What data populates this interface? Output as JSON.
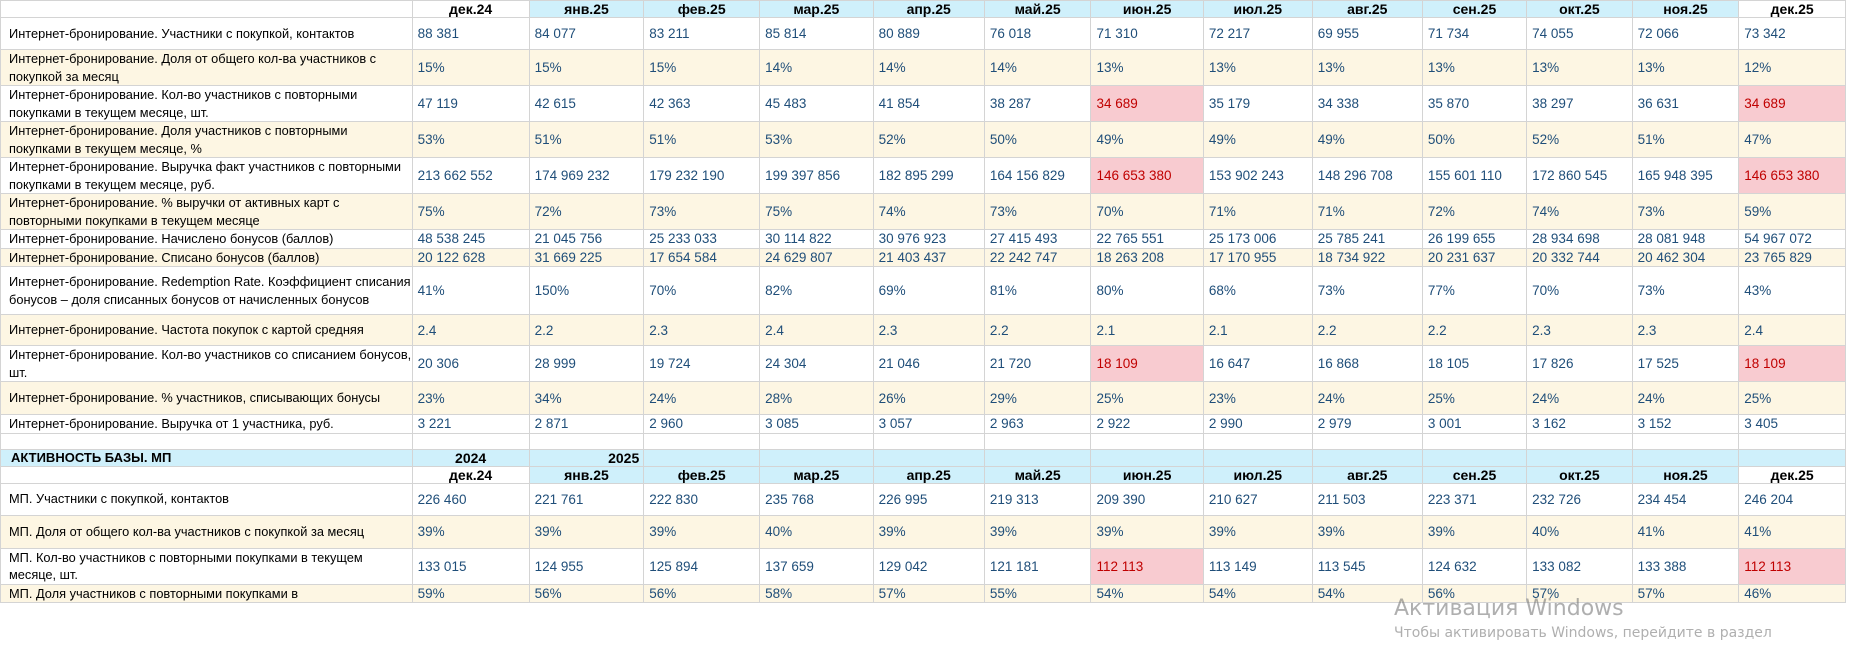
{
  "months": [
    "дек.24",
    "янв.25",
    "фев.25",
    "мар.25",
    "апр.25",
    "май.25",
    "июн.25",
    "июл.25",
    "авг.25",
    "сен.25",
    "окт.25",
    "ноя.25",
    "дек.25"
  ],
  "section1": {
    "rows": [
      {
        "label": "Интернет-бронирование. Участники с покупкой, контактов",
        "values": [
          "88 381",
          "84 077",
          "83 211",
          "85 814",
          "80 889",
          "76 018",
          "71 310",
          "72 217",
          "69 955",
          "71 734",
          "74 055",
          "72 066",
          "73 342"
        ]
      },
      {
        "label": "Интернет-бронирование. Доля от общего кол-ва участников с покупкой за месяц",
        "values": [
          "15%",
          "15%",
          "15%",
          "14%",
          "14%",
          "14%",
          "13%",
          "13%",
          "13%",
          "13%",
          "13%",
          "13%",
          "12%"
        ]
      },
      {
        "label": "Интернет-бронирование. Кол-во участников с повторными покупками в текущем месяце, шт.",
        "values": [
          "47 119",
          "42 615",
          "42 363",
          "45 483",
          "41 854",
          "38 287",
          "34 689",
          "35 179",
          "34 338",
          "35 870",
          "38 297",
          "36 631",
          "34 689"
        ],
        "highlight": [
          6,
          12
        ]
      },
      {
        "label": "Интернет-бронирование. Доля участников с повторными покупками в текущем месяце, %",
        "values": [
          "53%",
          "51%",
          "51%",
          "53%",
          "52%",
          "50%",
          "49%",
          "49%",
          "49%",
          "50%",
          "52%",
          "51%",
          "47%"
        ]
      },
      {
        "label": "Интернет-бронирование. Выручка факт участников с повторными покупками в текущем месяце, руб.",
        "values": [
          "213 662 552",
          "174 969 232",
          "179 232 190",
          "199 397 856",
          "182 895 299",
          "164 156 829",
          "146 653 380",
          "153 902 243",
          "148 296 708",
          "155 601 110",
          "172 860 545",
          "165 948 395",
          "146 653 380"
        ],
        "highlight": [
          6,
          12
        ]
      },
      {
        "label": "Интернет-бронирование. % выручки от активных карт с повторными покупками в текущем месяце",
        "values": [
          "75%",
          "72%",
          "73%",
          "75%",
          "74%",
          "73%",
          "70%",
          "71%",
          "71%",
          "72%",
          "74%",
          "73%",
          "59%"
        ]
      },
      {
        "label": "Интернет-бронирование. Начислено бонусов (баллов)",
        "values": [
          "48 538 245",
          "21 045 756",
          "25 233 033",
          "30 114 822",
          "30 976 923",
          "27 415 493",
          "22 765 551",
          "25 173 006",
          "25 785 241",
          "26 199 655",
          "28 934 698",
          "28 081 948",
          "54 967 072"
        ]
      },
      {
        "label": "Интернет-бронирование. Списано бонусов (баллов)",
        "values": [
          "20 122 628",
          "31 669 225",
          "17 654 584",
          "24 629 807",
          "21 403 437",
          "22 242 747",
          "18 263 208",
          "17 170 955",
          "18 734 922",
          "20 231 637",
          "20 332 744",
          "20 462 304",
          "23 765 829"
        ]
      },
      {
        "label": "Интернет-бронирование. Redemption Rate. Коэффициент списания бонусов – доля списанных бонусов от начисленных бонусов",
        "values": [
          "41%",
          "150%",
          "70%",
          "82%",
          "69%",
          "81%",
          "80%",
          "68%",
          "73%",
          "77%",
          "70%",
          "73%",
          "43%"
        ]
      },
      {
        "label": "Интернет-бронирование. Частота покупок с картой средняя",
        "values": [
          "2.4",
          "2.2",
          "2.3",
          "2.4",
          "2.3",
          "2.2",
          "2.1",
          "2.1",
          "2.2",
          "2.2",
          "2.3",
          "2.3",
          "2.4"
        ]
      },
      {
        "label": "Интернет-бронирование. Кол-во участников со списанием бонусов, шт.",
        "values": [
          "20 306",
          "28 999",
          "19 724",
          "24 304",
          "21 046",
          "21 720",
          "18 109",
          "16 647",
          "16 868",
          "18 105",
          "17 826",
          "17 525",
          "18 109"
        ],
        "highlight": [
          6,
          12
        ]
      },
      {
        "label": "Интернет-бронирование. % участников, списывающих бонусы",
        "values": [
          "23%",
          "34%",
          "24%",
          "28%",
          "26%",
          "29%",
          "25%",
          "23%",
          "24%",
          "25%",
          "24%",
          "24%",
          "25%"
        ]
      },
      {
        "label": "Интернет-бронирование. Выручка от 1 участника, руб.",
        "values": [
          "3 221",
          "2 871",
          "2 960",
          "3 085",
          "3 057",
          "2 963",
          "2 922",
          "2 990",
          "2 979",
          "3 001",
          "3 162",
          "3 152",
          "3 405"
        ]
      }
    ]
  },
  "section2": {
    "title": "АКТИВНОСТЬ БАЗЫ. МП",
    "year_2024": "2024",
    "year_2025": "2025",
    "rows": [
      {
        "label": "МП. Участники с покупкой, контактов",
        "values": [
          "226 460",
          "221 761",
          "222 830",
          "235 768",
          "226 995",
          "219 313",
          "209 390",
          "210 627",
          "211 503",
          "223 371",
          "232 726",
          "234 454",
          "246 204"
        ]
      },
      {
        "label": "МП. Доля от общего кол-ва участников с покупкой за месяц",
        "values": [
          "39%",
          "39%",
          "39%",
          "40%",
          "39%",
          "39%",
          "39%",
          "39%",
          "39%",
          "39%",
          "40%",
          "41%",
          "41%"
        ]
      },
      {
        "label": "МП. Кол-во участников с повторными покупками в текущем месяце, шт.",
        "values": [
          "133 015",
          "124 955",
          "125 894",
          "137 659",
          "129 042",
          "121 181",
          "112 113",
          "113 149",
          "113 545",
          "124 632",
          "133 082",
          "133 388",
          "112 113"
        ],
        "highlight": [
          6,
          12
        ]
      },
      {
        "label": "МП. Доля участников с повторными покупками в",
        "values": [
          "59%",
          "56%",
          "56%",
          "58%",
          "57%",
          "55%",
          "54%",
          "54%",
          "54%",
          "56%",
          "57%",
          "57%",
          "46%"
        ]
      }
    ]
  },
  "watermark": {
    "title": "Активация Windows",
    "subtitle": "Чтобы активировать Windows, перейдите в раздел"
  },
  "colors": {
    "header_bg": "#cff0fb",
    "alt_row_bg": "#fdf6e3",
    "highlight_bg": "#f8cbd0",
    "highlight_text": "#c00000",
    "value_text": "#1f4e79"
  }
}
